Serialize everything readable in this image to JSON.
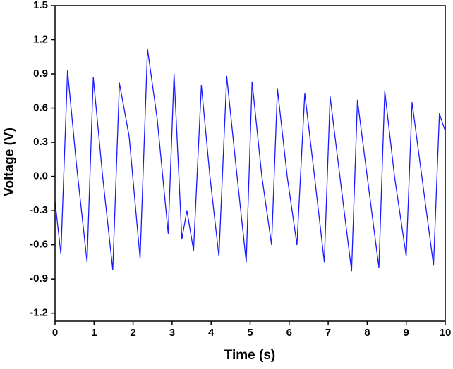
{
  "chart_data": {
    "type": "line",
    "xlabel": "Time (s)",
    "ylabel": "Voltage (V)",
    "x": [
      0,
      0.15,
      0.32,
      0.55,
      0.82,
      0.98,
      1.22,
      1.48,
      1.65,
      1.9,
      2.18,
      2.37,
      2.62,
      2.9,
      3.05,
      3.25,
      3.38,
      3.55,
      3.75,
      3.97,
      4.2,
      4.4,
      4.65,
      4.9,
      5.05,
      5.3,
      5.55,
      5.7,
      5.95,
      6.2,
      6.4,
      6.65,
      6.9,
      7.05,
      7.3,
      7.6,
      7.75,
      8.0,
      8.3,
      8.45,
      8.7,
      9.0,
      9.15,
      9.4,
      9.7,
      9.85,
      10
    ],
    "values": [
      -0.22,
      -0.68,
      0.93,
      0.1,
      -0.75,
      0.87,
      0.0,
      -0.82,
      0.82,
      0.35,
      -0.72,
      1.12,
      0.5,
      -0.5,
      0.9,
      -0.55,
      -0.3,
      -0.65,
      0.8,
      0.0,
      -0.7,
      0.88,
      0.05,
      -0.75,
      0.83,
      0.0,
      -0.6,
      0.77,
      0.0,
      -0.6,
      0.73,
      0.0,
      -0.75,
      0.7,
      0.0,
      -0.83,
      0.67,
      0.0,
      -0.8,
      0.75,
      0.0,
      -0.7,
      0.65,
      0.0,
      -0.78,
      0.55,
      0.4
    ],
    "color": "#1a1aff",
    "xlim": [
      0,
      10
    ],
    "xticks": [
      0,
      1,
      2,
      3,
      4,
      5,
      6,
      7,
      8,
      9,
      10
    ],
    "ylim": [
      -1.27,
      1.5
    ],
    "yticks": [
      -1.2,
      -0.9,
      -0.6,
      -0.3,
      {
        "value": 0,
        "label": "0.0"
      },
      0.3,
      0.6,
      0.9,
      1.2,
      1.5
    ]
  }
}
